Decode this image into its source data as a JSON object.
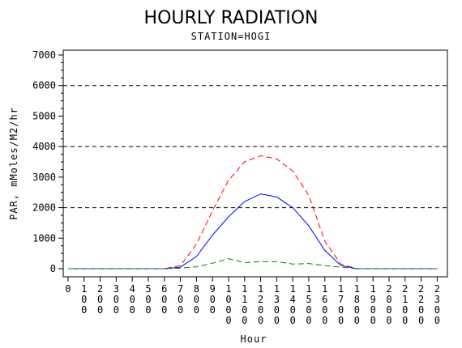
{
  "chart_data": {
    "type": "line",
    "title": "HOURLY RADIATION",
    "subtitle": "STATION=HOGI",
    "xlabel": "Hour",
    "ylabel": "PAR, mMoles/M2/hr",
    "x": [
      "0",
      "100",
      "200",
      "300",
      "400",
      "500",
      "600",
      "700",
      "800",
      "900",
      "1000",
      "1100",
      "1200",
      "1300",
      "1400",
      "1500",
      "1600",
      "1700",
      "1800",
      "1900",
      "2000",
      "2100",
      "2200",
      "2300"
    ],
    "ylim": [
      0,
      7000
    ],
    "yticks": [
      "0",
      "1000",
      "2000",
      "3000",
      "4000",
      "5000",
      "6000",
      "7000"
    ],
    "reference_lines": [
      2000,
      4000,
      6000
    ],
    "series": [
      {
        "color": "#ff0000",
        "style": "dashed",
        "values": [
          0,
          0,
          0,
          0,
          0,
          0,
          0,
          100,
          800,
          1900,
          2900,
          3500,
          3700,
          3600,
          3200,
          2400,
          900,
          150,
          0,
          0,
          0,
          0,
          0,
          0
        ]
      },
      {
        "color": "#0000ff",
        "style": "solid",
        "values": [
          0,
          0,
          0,
          0,
          0,
          0,
          0,
          50,
          400,
          1100,
          1700,
          2200,
          2450,
          2350,
          2000,
          1400,
          600,
          100,
          0,
          0,
          0,
          0,
          0,
          0
        ]
      },
      {
        "color": "#008000",
        "style": "dashed",
        "values": [
          0,
          0,
          0,
          0,
          0,
          0,
          0,
          20,
          60,
          180,
          330,
          200,
          230,
          230,
          150,
          170,
          100,
          50,
          0,
          0,
          0,
          0,
          0,
          0
        ]
      }
    ]
  }
}
